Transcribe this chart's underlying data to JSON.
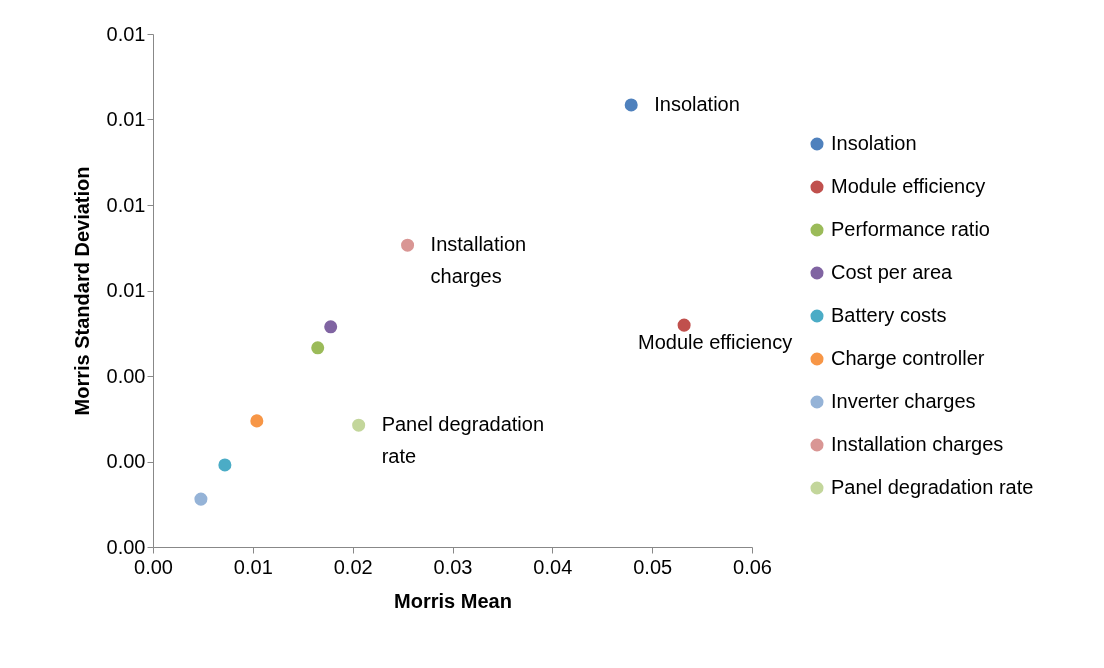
{
  "chart_data": {
    "type": "scatter",
    "xlabel": "Morris Mean",
    "ylabel": "Morris Standard Deviation",
    "xlim": [
      0,
      0.06
    ],
    "ylim": [
      0,
      0.012
    ],
    "xticks": [
      {
        "value": 0,
        "label": "0.00"
      },
      0.01,
      0.02,
      0.03,
      0.04,
      0.05,
      0.06
    ],
    "yticks": [
      {
        "value": 0,
        "label": "0.00"
      },
      {
        "value": 0.002,
        "label": "0.00"
      },
      {
        "value": 0.004,
        "label": "0.00"
      },
      {
        "value": 0.006,
        "label": "0.01"
      },
      {
        "value": 0.008,
        "label": "0.01"
      },
      {
        "value": 0.01,
        "label": "0.01"
      },
      {
        "value": 0.012,
        "label": "0.01"
      }
    ],
    "marker": "circle",
    "legend": "right",
    "grid": false,
    "series": [
      {
        "name": "Insolation",
        "color": "#4f81bd",
        "x": [
          0.0479
        ],
        "values": [
          0.01034
        ]
      },
      {
        "name": "Module efficiency",
        "color": "#c0504d",
        "x": [
          0.0532
        ],
        "values": [
          0.00519
        ]
      },
      {
        "name": "Performance ratio",
        "color": "#9bbb59",
        "x": [
          0.0165
        ],
        "values": [
          0.00466
        ]
      },
      {
        "name": "Cost per area",
        "color": "#8064a2",
        "x": [
          0.0178
        ],
        "values": [
          0.00515
        ]
      },
      {
        "name": "Battery costs",
        "color": "#4bacc6",
        "x": [
          0.0072
        ],
        "values": [
          0.00192
        ]
      },
      {
        "name": "Charge controller",
        "color": "#f79646",
        "x": [
          0.0104
        ],
        "values": [
          0.00295
        ]
      },
      {
        "name": "Inverter charges",
        "color": "#95b3d7",
        "x": [
          0.0048
        ],
        "values": [
          0.00112
        ]
      },
      {
        "name": "Installation charges",
        "color": "#d99694",
        "x": [
          0.0255
        ],
        "values": [
          0.00706
        ]
      },
      {
        "name": "Panel degradation rate",
        "color": "#c3d69b",
        "x": [
          0.0206
        ],
        "values": [
          0.00285
        ]
      }
    ],
    "annotations": [
      {
        "text": "Insolation",
        "x": 0.0479,
        "y": 0.01034
      },
      {
        "text": "Installation charges",
        "x": 0.0255,
        "y": 0.00706
      },
      {
        "text": "Module efficiency",
        "x": 0.0532,
        "y": 0.00519
      },
      {
        "text": "Panel degradation rate",
        "x": 0.0206,
        "y": 0.00285
      }
    ]
  }
}
